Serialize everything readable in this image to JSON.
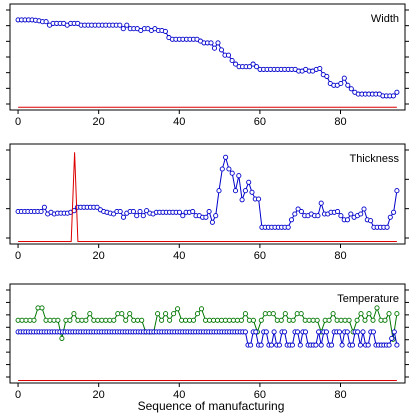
{
  "xlabel": "Sequence of manufacturing",
  "colors": {
    "blue": "#0000cc",
    "green": "#007700",
    "red": "#dd0000",
    "frame": "#000000"
  },
  "chart_data": [
    {
      "type": "line",
      "title": "Width",
      "xlim": [
        -2,
        96
      ],
      "ylim": [
        0,
        12
      ],
      "xticks": [
        "0",
        "20",
        "40",
        "60",
        "80"
      ],
      "xtick_values": [
        0,
        20,
        40,
        60,
        80
      ],
      "ytick_count": 7,
      "series": [
        {
          "color": "#0000cc",
          "style": "points-lines",
          "values": [
            10.2,
            10.2,
            10.2,
            10.2,
            10.2,
            10.15,
            10.1,
            10.0,
            10.0,
            9.6,
            9.8,
            9.8,
            9.8,
            9.8,
            9.6,
            9.8,
            9.8,
            9.8,
            9.6,
            9.6,
            9.6,
            9.6,
            9.6,
            9.6,
            9.6,
            9.6,
            9.6,
            9.6,
            9.6,
            9.6,
            9.2,
            9.6,
            9.2,
            9.2,
            9.2,
            9.0,
            9.2,
            9.2,
            9.0,
            9.2,
            9.0,
            9.0,
            8.9,
            8.2,
            8.0,
            8.0,
            8.0,
            8.0,
            8.0,
            8.0,
            8.0,
            8.0,
            7.8,
            7.6,
            7.6,
            7.6,
            7.0,
            7.6,
            6.8,
            6.2,
            6.2,
            5.6,
            5.2,
            4.9,
            4.9,
            4.9,
            4.9,
            5.2,
            4.9,
            4.6,
            4.6,
            4.6,
            4.6,
            4.6,
            4.6,
            4.6,
            4.6,
            4.6,
            4.6,
            4.6,
            4.4,
            4.4,
            4.6,
            4.4,
            4.4,
            4.6,
            4.7,
            4.0,
            3.8,
            3.0,
            2.8,
            2.8,
            3.0,
            3.6,
            2.8,
            2.4,
            2.0,
            1.8,
            1.8,
            1.8,
            1.8,
            1.8,
            1.8,
            1.8,
            1.6,
            1.6,
            1.6,
            1.6,
            2.0
          ]
        },
        {
          "color": "#dd0000",
          "style": "line",
          "values": [
            0.3,
            0.3,
            0.3,
            0.3,
            0.3,
            0.3,
            0.3,
            0.3,
            0.3,
            0.3,
            0.3,
            0.3,
            0.3,
            0.3,
            0.3,
            0.3,
            0.3,
            0.3,
            0.3,
            0.3,
            0.3,
            0.3,
            0.3,
            0.3,
            0.3,
            0.3,
            0.3,
            0.3,
            0.3,
            0.3,
            0.3,
            0.3,
            0.3,
            0.3,
            0.3,
            0.3,
            0.3,
            0.3,
            0.3,
            0.3,
            0.3,
            0.3,
            0.3,
            0.3,
            0.3,
            0.3,
            0.3,
            0.3,
            0.3,
            0.3,
            0.3,
            0.3,
            0.3,
            0.3,
            0.3,
            0.3,
            0.3,
            0.3,
            0.3,
            0.3,
            0.3,
            0.3,
            0.3,
            0.3,
            0.3,
            0.3,
            0.3,
            0.3,
            0.3,
            0.3,
            0.3,
            0.3,
            0.3,
            0.3,
            0.3,
            0.3,
            0.3,
            0.3,
            0.3,
            0.3,
            0.3,
            0.3,
            0.3,
            0.3,
            0.3,
            0.3,
            0.3,
            0.3,
            0.3,
            0.3,
            0.3,
            0.3,
            0.3,
            0.3
          ]
        }
      ]
    },
    {
      "type": "line",
      "title": "Thickness",
      "xlim": [
        -2,
        96
      ],
      "ylim": [
        0,
        12
      ],
      "xticks": [
        "0",
        "20",
        "40",
        "60",
        "80"
      ],
      "xtick_values": [
        0,
        20,
        40,
        60,
        80
      ],
      "ytick_count": 4,
      "series": [
        {
          "color": "#0000cc",
          "style": "points-lines",
          "values": [
            3.9,
            3.9,
            3.9,
            3.9,
            3.9,
            3.9,
            3.9,
            3.9,
            4.4,
            3.6,
            3.8,
            3.6,
            3.7,
            3.7,
            3.7,
            3.7,
            3.8,
            4.0,
            4.4,
            4.4,
            4.4,
            4.4,
            4.4,
            4.4,
            4.4,
            4.1,
            3.9,
            3.8,
            3.7,
            3.6,
            3.9,
            3.9,
            3.2,
            3.7,
            3.9,
            3.9,
            3.4,
            3.9,
            3.4,
            4.0,
            3.7,
            3.6,
            3.8,
            3.8,
            3.8,
            3.8,
            3.8,
            3.8,
            3.8,
            3.8,
            3.4,
            3.8,
            3.8,
            3.9,
            3.4,
            3.4,
            3.2,
            3.2,
            3.9,
            2.6,
            3.4,
            6.4,
            9.0,
            10.4,
            9.0,
            8.5,
            6.4,
            8.2,
            5.3,
            6.4,
            7.4,
            6.2,
            5.4,
            5.4,
            2.0,
            2.0,
            2.0,
            2.0,
            2.0,
            2.0,
            2.0,
            2.0,
            2.0,
            2.9,
            3.6,
            4.2,
            3.9,
            3.4,
            3.4,
            3.6,
            3.4,
            3.4,
            4.9,
            3.6,
            3.6,
            3.8,
            3.8,
            3.9,
            3.4,
            2.9,
            2.9,
            3.6,
            3.2,
            3.4,
            3.6,
            4.2,
            2.9,
            2.8,
            2.0,
            2.0,
            2.0,
            2.0,
            2.0,
            3.2,
            3.8,
            6.4
          ]
        },
        {
          "color": "#dd0000",
          "style": "line",
          "values": [
            0.3,
            0.3,
            0.3,
            0.3,
            0.3,
            0.3,
            0.3,
            0.3,
            0.3,
            0.3,
            0.3,
            0.3,
            0.3,
            0.3,
            0.3,
            0.3,
            0.3,
            11.0,
            0.3,
            0.3,
            0.3,
            0.3,
            0.3,
            0.3,
            0.3,
            0.3,
            0.3,
            0.3,
            0.3,
            0.3,
            0.3,
            0.3,
            0.3,
            0.3,
            0.3,
            0.3,
            0.3,
            0.3,
            0.3,
            0.3,
            0.3,
            0.3,
            0.3,
            0.3,
            0.3,
            0.3,
            0.3,
            0.3,
            0.3,
            0.3,
            0.3,
            0.3,
            0.3,
            0.3,
            0.3,
            0.3,
            0.3,
            0.3,
            0.3,
            0.3,
            0.3,
            0.3,
            0.3,
            0.3,
            0.3,
            0.3,
            0.3,
            0.3,
            0.3,
            0.3,
            0.3,
            0.3,
            0.3,
            0.3,
            0.3,
            0.3,
            0.3,
            0.3,
            0.3,
            0.3,
            0.3,
            0.3,
            0.3,
            0.3,
            0.3,
            0.3,
            0.3,
            0.3,
            0.3,
            0.3,
            0.3,
            0.3,
            0.3,
            0.3,
            0.3,
            0.3,
            0.3,
            0.3,
            0.3,
            0.3,
            0.3,
            0.3,
            0.3,
            0.3,
            0.3,
            0.3,
            0.3,
            0.3,
            0.3,
            0.3,
            0.3,
            0.3,
            0.3,
            0.3,
            0.3
          ]
        }
      ]
    },
    {
      "type": "line",
      "title": "Temperature",
      "xlim": [
        -2,
        96
      ],
      "ylim": [
        0,
        12
      ],
      "xticks": [
        "0",
        "20",
        "40",
        "60",
        "80"
      ],
      "xtick_values": [
        0,
        20,
        40,
        60,
        80
      ],
      "ytick_count": 8,
      "series": [
        {
          "color": "#007700",
          "style": "points-lines",
          "values": [
            7.6,
            7.6,
            7.6,
            7.6,
            7.6,
            9.1,
            9.1,
            7.6,
            7.6,
            7.6,
            7.6,
            5.4,
            7.6,
            7.6,
            8.4,
            7.6,
            7.6,
            7.6,
            8.4,
            7.6,
            7.6,
            7.6,
            7.6,
            7.6,
            7.6,
            8.4,
            8.4,
            7.6,
            8.4,
            7.6,
            7.6,
            7.6,
            6.2,
            6.2,
            6.2,
            8.4,
            7.6,
            8.4,
            7.6,
            8.4,
            9.0,
            7.6,
            7.6,
            7.6,
            7.6,
            8.4,
            9.0,
            7.6,
            7.6,
            7.6,
            7.6,
            7.6,
            7.6,
            7.6,
            7.6,
            7.6,
            7.6,
            8.4,
            7.6,
            7.6,
            6.2,
            7.6,
            8.4,
            8.4,
            8.4,
            7.6,
            7.6,
            8.4,
            7.6,
            7.6,
            8.4,
            8.4,
            7.6,
            7.6,
            7.6,
            7.6,
            6.2,
            7.6,
            7.6,
            8.4,
            7.6,
            7.6,
            7.6,
            7.6,
            6.2,
            7.6,
            8.4,
            7.6,
            8.4,
            7.6,
            9.1,
            7.6,
            7.6,
            8.4,
            5.3,
            8.4
          ]
        },
        {
          "color": "#0000cc",
          "style": "points-lines",
          "values": [
            6.2,
            6.2,
            6.2,
            6.2,
            6.2,
            6.2,
            6.2,
            6.2,
            6.2,
            6.2,
            6.2,
            6.2,
            6.2,
            6.2,
            6.2,
            6.2,
            6.2,
            6.2,
            6.2,
            6.2,
            6.2,
            6.2,
            6.2,
            6.2,
            6.2,
            6.2,
            6.2,
            6.2,
            6.2,
            6.2,
            6.2,
            6.2,
            6.2,
            6.2,
            6.2,
            6.2,
            6.2,
            6.2,
            6.2,
            6.2,
            6.2,
            6.2,
            6.2,
            6.2,
            6.2,
            6.2,
            6.2,
            6.2,
            6.2,
            6.2,
            6.2,
            6.2,
            6.2,
            6.2,
            6.2,
            6.2,
            6.2,
            6.2,
            6.2,
            6.2,
            6.2,
            6.2,
            6.2,
            6.2,
            6.2,
            6.2,
            6.2,
            6.2,
            6.2,
            6.2,
            6.2,
            6.2,
            6.2,
            6.2,
            6.2,
            6.2,
            6.2,
            6.2,
            6.2,
            6.2,
            6.2,
            6.2,
            6.2,
            6.2,
            6.2,
            6.2,
            6.2,
            6.2,
            4.6,
            4.6,
            6.2,
            6.2,
            4.6,
            4.6,
            6.2,
            6.2,
            4.6,
            4.6,
            6.2,
            4.6,
            4.6,
            6.2,
            6.2,
            4.6,
            4.6,
            4.6,
            6.2,
            6.2,
            4.6,
            6.2,
            6.2,
            4.6,
            4.6,
            4.6,
            4.6,
            6.2,
            4.6,
            6.2,
            6.2,
            4.6,
            4.6,
            6.2,
            6.2,
            6.2,
            4.6,
            6.2,
            6.2,
            4.6,
            4.6,
            6.2,
            6.2,
            4.6,
            6.2,
            4.6,
            4.6,
            6.2,
            6.2,
            4.6,
            4.6,
            4.6,
            4.6,
            4.6,
            4.6,
            5.4,
            6.2,
            4.6
          ]
        },
        {
          "color": "#dd0000",
          "style": "line",
          "values": [
            0.3,
            0.3,
            0.3,
            0.3,
            0.3,
            0.3,
            0.3,
            0.3,
            0.3,
            0.3,
            0.3,
            0.3,
            0.3,
            0.3,
            0.3,
            0.3,
            0.3,
            0.3,
            0.3,
            0.3,
            0.3,
            0.3,
            0.3,
            0.3,
            0.3,
            0.3,
            0.3,
            0.3,
            0.3,
            0.3,
            0.3,
            0.3,
            0.3,
            0.3,
            0.3,
            0.3,
            0.3,
            0.3,
            0.3,
            0.3,
            0.3,
            0.3,
            0.3,
            0.3,
            0.3,
            0.3,
            0.3,
            0.3,
            0.3,
            0.3,
            0.3,
            0.3,
            0.3,
            0.3,
            0.3,
            0.3,
            0.3,
            0.3,
            0.3,
            0.3,
            0.3,
            0.3,
            0.3,
            0.3,
            0.3,
            0.3,
            0.3,
            0.3,
            0.3,
            0.3,
            0.3,
            0.3,
            0.3,
            0.3,
            0.3,
            0.3,
            0.3,
            0.3,
            0.3,
            0.3,
            0.3,
            0.3,
            0.3,
            0.3,
            0.3,
            0.3,
            0.3,
            0.3,
            0.3,
            0.3,
            0.3,
            0.3,
            0.3,
            0.3,
            0.3,
            0.3
          ]
        }
      ]
    }
  ]
}
